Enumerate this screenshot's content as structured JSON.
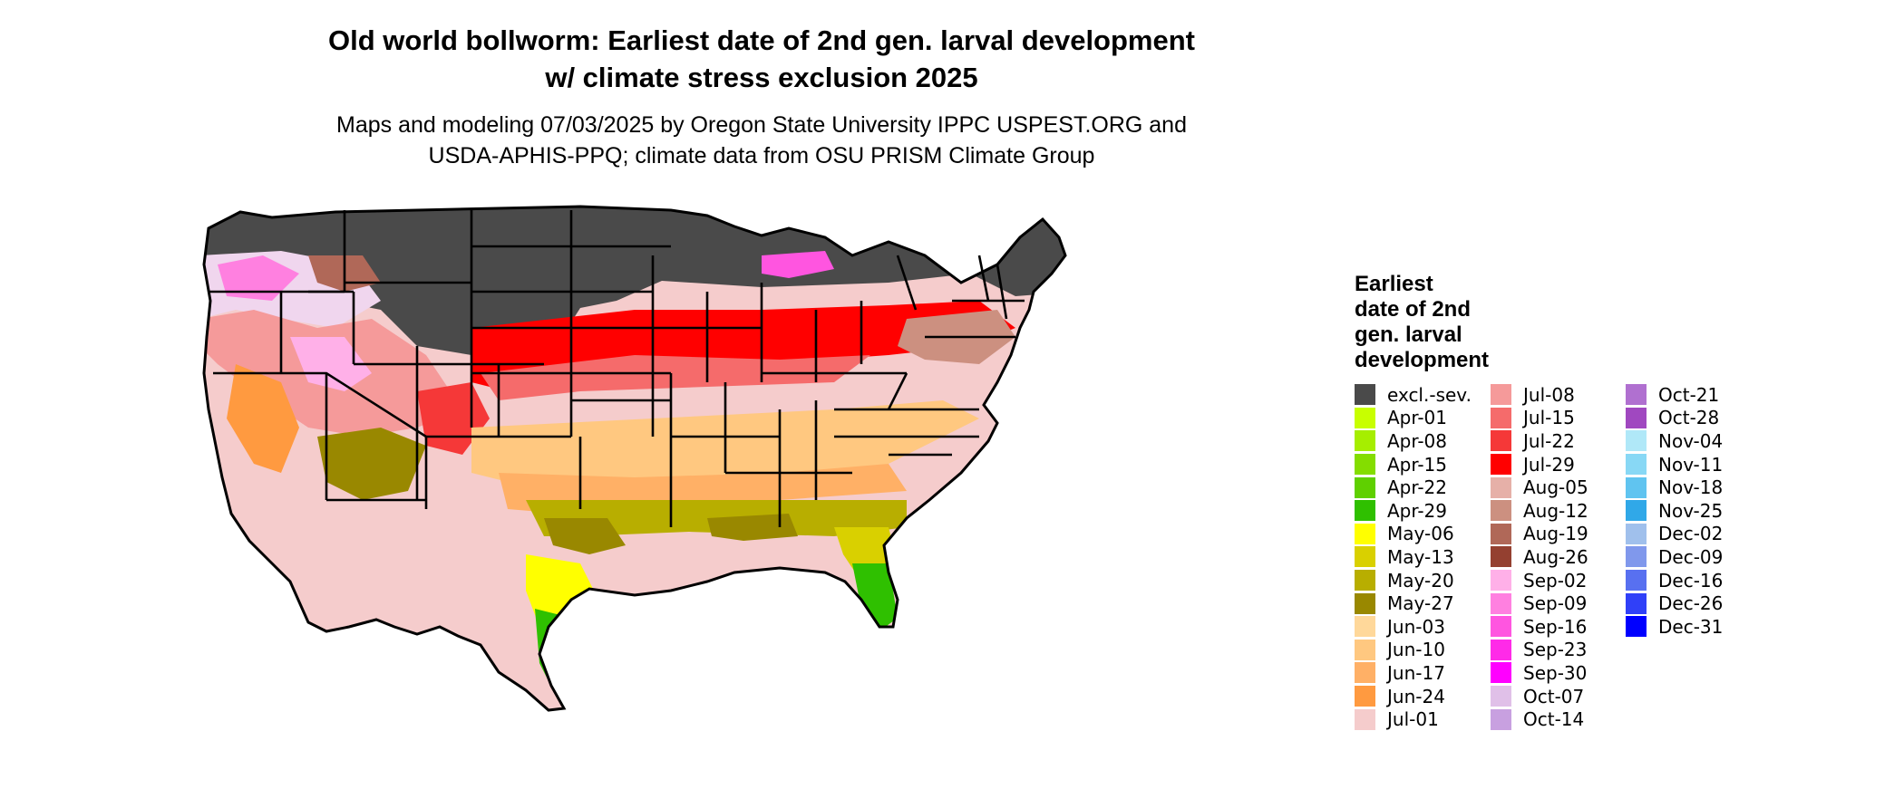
{
  "title_line1": "Old world bollworm: Earliest date of 2nd gen. larval development",
  "title_line2": "w/ climate stress exclusion 2025",
  "subtitle_line1": "Maps and modeling 07/03/2025 by Oregon State University IPPC USPEST.ORG and",
  "subtitle_line2": "USDA-APHIS-PPQ; climate data from OSU PRISM Climate Group",
  "legend": {
    "title_lines": [
      "Earliest",
      "date of 2nd",
      "gen. larval",
      "development"
    ],
    "columns": [
      [
        {
          "label": "excl.-sev.",
          "color": "#4a4a4a"
        },
        {
          "label": "Apr-01",
          "color": "#c8ff00"
        },
        {
          "label": "Apr-08",
          "color": "#a6ee00"
        },
        {
          "label": "Apr-15",
          "color": "#84dd00"
        },
        {
          "label": "Apr-22",
          "color": "#5fd000"
        },
        {
          "label": "Apr-29",
          "color": "#2fc000"
        },
        {
          "label": "May-06",
          "color": "#ffff00"
        },
        {
          "label": "May-13",
          "color": "#d9d000"
        },
        {
          "label": "May-20",
          "color": "#b8ae00"
        },
        {
          "label": "May-27",
          "color": "#998800"
        },
        {
          "label": "Jun-03",
          "color": "#ffd89a"
        },
        {
          "label": "Jun-10",
          "color": "#ffc880"
        },
        {
          "label": "Jun-17",
          "color": "#ffb066"
        },
        {
          "label": "Jun-24",
          "color": "#ff9a40"
        },
        {
          "label": "Jul-01",
          "color": "#f5cccc"
        }
      ],
      [
        {
          "label": "Jul-08",
          "color": "#f59a9a"
        },
        {
          "label": "Jul-15",
          "color": "#f56b6b"
        },
        {
          "label": "Jul-22",
          "color": "#f53838"
        },
        {
          "label": "Jul-29",
          "color": "#ff0000"
        },
        {
          "label": "Aug-05",
          "color": "#e6b0a8"
        },
        {
          "label": "Aug-12",
          "color": "#cc9080"
        },
        {
          "label": "Aug-19",
          "color": "#b06858"
        },
        {
          "label": "Aug-26",
          "color": "#944030"
        },
        {
          "label": "Sep-02",
          "color": "#ffb0e8"
        },
        {
          "label": "Sep-09",
          "color": "#ff80e0"
        },
        {
          "label": "Sep-16",
          "color": "#ff55e0"
        },
        {
          "label": "Sep-23",
          "color": "#ff2ae8"
        },
        {
          "label": "Sep-30",
          "color": "#ff00ff"
        },
        {
          "label": "Oct-07",
          "color": "#e0c0e8"
        },
        {
          "label": "Oct-14",
          "color": "#c8a0e0"
        }
      ],
      [
        {
          "label": "Oct-21",
          "color": "#b070d0"
        },
        {
          "label": "Oct-28",
          "color": "#a048c0"
        },
        {
          "label": "Nov-04",
          "color": "#b0e8f8"
        },
        {
          "label": "Nov-11",
          "color": "#88d8f5"
        },
        {
          "label": "Nov-18",
          "color": "#60c4f0"
        },
        {
          "label": "Nov-25",
          "color": "#30a8e8"
        },
        {
          "label": "Dec-02",
          "color": "#a0c0ec"
        },
        {
          "label": "Dec-09",
          "color": "#8098ec"
        },
        {
          "label": "Dec-16",
          "color": "#5870f0"
        },
        {
          "label": "Dec-26",
          "color": "#3040f8"
        },
        {
          "label": "Dec-31",
          "color": "#0000ff"
        }
      ]
    ]
  }
}
